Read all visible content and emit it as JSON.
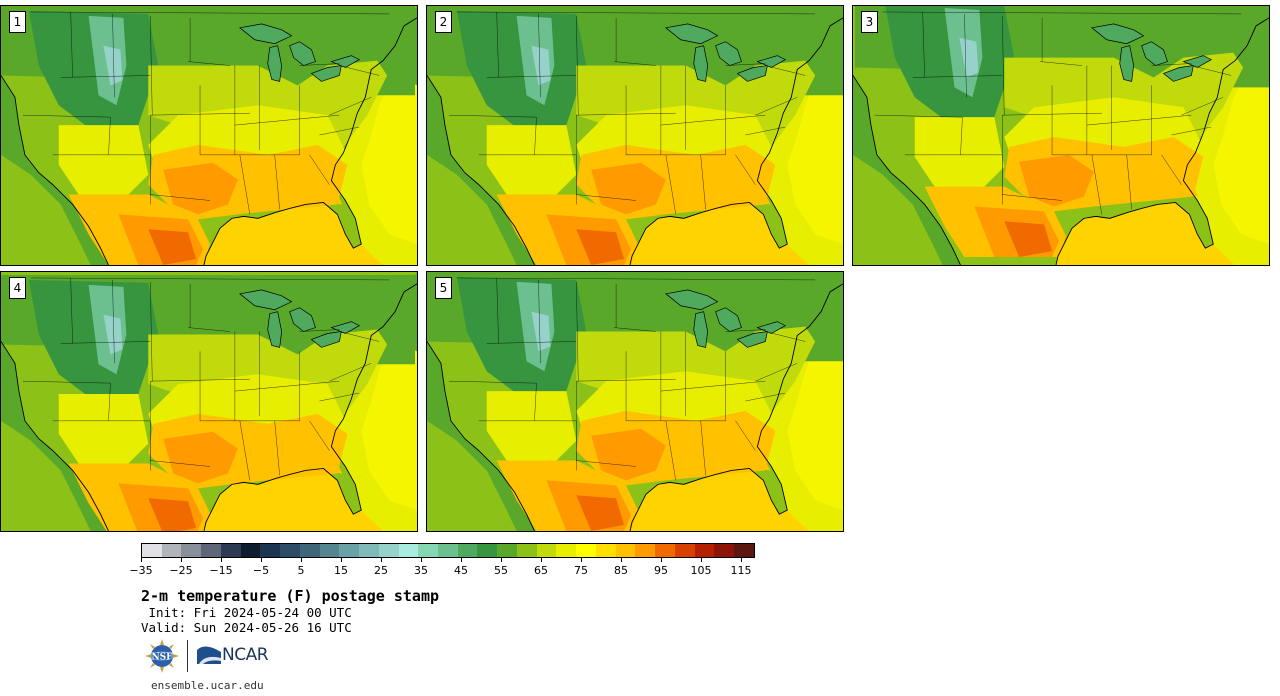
{
  "panels": [
    {
      "label": "1"
    },
    {
      "label": "2"
    },
    {
      "label": "3"
    },
    {
      "label": "4"
    },
    {
      "label": "5"
    }
  ],
  "colorbar": {
    "colors": [
      "#e2e2e6",
      "#b2b4bc",
      "#8a8f9c",
      "#5e6678",
      "#2d3a54",
      "#0e1c2e",
      "#1d3550",
      "#2c4b66",
      "#3d6679",
      "#55858f",
      "#6aa1a6",
      "#7fb9b8",
      "#96d2c9",
      "#a8ebdf",
      "#85d6b2",
      "#6cc08f",
      "#4fa95f",
      "#36953e",
      "#5aa82a",
      "#8cc217",
      "#c1da0b",
      "#e7ee00",
      "#ffff00",
      "#ffde00",
      "#ffc100",
      "#ff9a00",
      "#f16a00",
      "#d84000",
      "#b42000",
      "#8c1408",
      "#5c1810"
    ],
    "ticks": [
      "−35",
      "−25",
      "−15",
      "−5",
      "5",
      "15",
      "25",
      "35",
      "45",
      "55",
      "65",
      "75",
      "85",
      "95",
      "105",
      "115"
    ]
  },
  "title": "2-m temperature (F) postage stamp",
  "init_line": " Init: Fri 2024-05-24 00 UTC",
  "valid_line": "Valid: Sun 2024-05-26 16 UTC",
  "logos": {
    "nsf": "NSF",
    "ncar": "NCAR"
  },
  "website": "ensemble.ucar.edu",
  "icons": {
    "nsf": "nsf-globe-icon",
    "ncar": "ncar-wave-icon"
  }
}
